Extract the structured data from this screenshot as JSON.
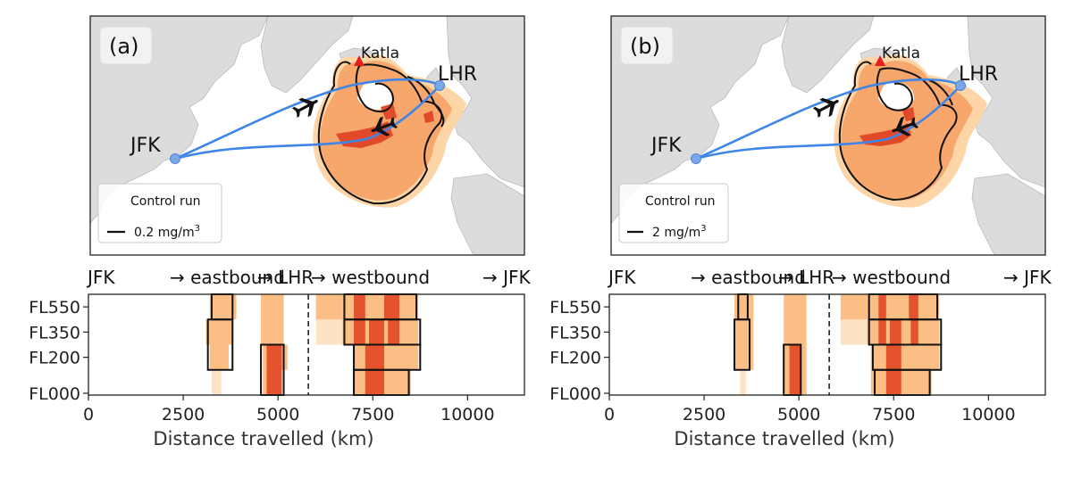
{
  "panels": [
    {
      "letter": "(a)",
      "legend_title": "Control run",
      "legend_value": "0.2 mg/m",
      "legend_sup": "3",
      "airports": {
        "origin": "JFK",
        "destination": "LHR"
      },
      "volcano": "Katla"
    },
    {
      "letter": "(b)",
      "legend_title": "Control run",
      "legend_value": "2 mg/m",
      "legend_sup": "3",
      "airports": {
        "origin": "JFK",
        "destination": "LHR"
      },
      "volcano": "Katla"
    }
  ],
  "colors": {
    "route": "#3e86e8",
    "ash_low": "#fde3c4",
    "ash_mid": "#fbbf86",
    "ash_high": "#e4532e",
    "contour": "#111111",
    "volcano": "#e8201c"
  },
  "chart_data": [
    {
      "type": "heatmap",
      "panel": "(a)",
      "title": "",
      "route_labels": [
        "JFK",
        "→ eastbound",
        "→ LHR",
        "→ westbound",
        "→ JFK"
      ],
      "xlabel": "Distance travelled (km)",
      "ylabel": "",
      "xlim": [
        0,
        11500
      ],
      "x_ticks": [
        0,
        2500,
        5000,
        7500,
        10000
      ],
      "y_levels": [
        "FL000",
        "FL200",
        "FL350",
        "FL550"
      ],
      "lhr_marker_km": 5800,
      "cells": [
        {
          "x0": 3200,
          "x1": 3900,
          "levels": [
            "FL550"
          ],
          "v": 1
        },
        {
          "x0": 3100,
          "x1": 3800,
          "levels": [
            "FL350"
          ],
          "v": 1
        },
        {
          "x0": 3200,
          "x1": 3700,
          "levels": [
            "FL200"
          ],
          "v": 1
        },
        {
          "x0": 3250,
          "x1": 3500,
          "levels": [
            "FL000"
          ],
          "v": 0
        },
        {
          "x0": 4550,
          "x1": 5150,
          "levels": [
            "FL550",
            "FL350"
          ],
          "v": 1
        },
        {
          "x0": 4600,
          "x1": 5250,
          "levels": [
            "FL200"
          ],
          "v": 1
        },
        {
          "x0": 4600,
          "x1": 5000,
          "levels": [
            "FL000"
          ],
          "v": 1
        },
        {
          "x0": 4700,
          "x1": 5100,
          "levels": [
            "FL200",
            "FL000"
          ],
          "v": 2
        },
        {
          "x0": 6000,
          "x1": 6700,
          "levels": [
            "FL550"
          ],
          "v": 1
        },
        {
          "x0": 6000,
          "x1": 6700,
          "levels": [
            "FL350"
          ],
          "v": 0
        },
        {
          "x0": 6700,
          "x1": 8700,
          "levels": [
            "FL550",
            "FL350"
          ],
          "v": 1
        },
        {
          "x0": 7000,
          "x1": 8700,
          "levels": [
            "FL200"
          ],
          "v": 1
        },
        {
          "x0": 7000,
          "x1": 8500,
          "levels": [
            "FL000"
          ],
          "v": 1
        },
        {
          "x0": 7000,
          "x1": 7300,
          "levels": [
            "FL550",
            "FL350"
          ],
          "v": 2
        },
        {
          "x0": 7800,
          "x1": 8200,
          "levels": [
            "FL550"
          ],
          "v": 2
        },
        {
          "x0": 7400,
          "x1": 7800,
          "levels": [
            "FL350"
          ],
          "v": 2
        },
        {
          "x0": 7900,
          "x1": 8200,
          "levels": [
            "FL350"
          ],
          "v": 2
        },
        {
          "x0": 7300,
          "x1": 7800,
          "levels": [
            "FL200",
            "FL000"
          ],
          "v": 2
        }
      ],
      "outlines": [
        {
          "x0": 3250,
          "x1": 3800,
          "levels": [
            "FL550"
          ]
        },
        {
          "x0": 3150,
          "x1": 3800,
          "levels": [
            "FL350",
            "FL200"
          ]
        },
        {
          "x0": 4550,
          "x1": 5150,
          "levels": [
            "FL200",
            "FL000"
          ]
        },
        {
          "x0": 6750,
          "x1": 8650,
          "levels": [
            "FL550"
          ]
        },
        {
          "x0": 6750,
          "x1": 8750,
          "levels": [
            "FL350"
          ]
        },
        {
          "x0": 7000,
          "x1": 8750,
          "levels": [
            "FL200"
          ]
        },
        {
          "x0": 7000,
          "x1": 8450,
          "levels": [
            "FL000"
          ]
        }
      ]
    },
    {
      "type": "heatmap",
      "panel": "(b)",
      "title": "",
      "route_labels": [
        "JFK",
        "→ eastbound",
        "→ LHR",
        "→ westbound",
        "→ JFK"
      ],
      "xlabel": "Distance travelled (km)",
      "ylabel": "",
      "xlim": [
        0,
        11500
      ],
      "x_ticks": [
        0,
        2500,
        5000,
        7500,
        10000
      ],
      "y_levels": [
        "FL000",
        "FL200",
        "FL350",
        "FL550"
      ],
      "lhr_marker_km": 5800,
      "cells": [
        {
          "x0": 3300,
          "x1": 3800,
          "levels": [
            "FL550",
            "FL350"
          ],
          "v": 1
        },
        {
          "x0": 3300,
          "x1": 3800,
          "levels": [
            "FL200"
          ],
          "v": 1
        },
        {
          "x0": 3450,
          "x1": 3600,
          "levels": [
            "FL000"
          ],
          "v": 0
        },
        {
          "x0": 4600,
          "x1": 5200,
          "levels": [
            "FL550",
            "FL350"
          ],
          "v": 1
        },
        {
          "x0": 4600,
          "x1": 5200,
          "levels": [
            "FL200",
            "FL000"
          ],
          "v": 1
        },
        {
          "x0": 4750,
          "x1": 5050,
          "levels": [
            "FL200",
            "FL000"
          ],
          "v": 2
        },
        {
          "x0": 6100,
          "x1": 6800,
          "levels": [
            "FL550"
          ],
          "v": 1
        },
        {
          "x0": 6100,
          "x1": 6800,
          "levels": [
            "FL350"
          ],
          "v": 0
        },
        {
          "x0": 6800,
          "x1": 8700,
          "levels": [
            "FL550",
            "FL350"
          ],
          "v": 1
        },
        {
          "x0": 6900,
          "x1": 8700,
          "levels": [
            "FL200"
          ],
          "v": 1
        },
        {
          "x0": 6900,
          "x1": 8500,
          "levels": [
            "FL000"
          ],
          "v": 1
        },
        {
          "x0": 7100,
          "x1": 7300,
          "levels": [
            "FL550",
            "FL350"
          ],
          "v": 2
        },
        {
          "x0": 7900,
          "x1": 8150,
          "levels": [
            "FL550"
          ],
          "v": 2
        },
        {
          "x0": 7400,
          "x1": 7700,
          "levels": [
            "FL350"
          ],
          "v": 2
        },
        {
          "x0": 7950,
          "x1": 8150,
          "levels": [
            "FL350"
          ],
          "v": 2
        },
        {
          "x0": 7300,
          "x1": 7700,
          "levels": [
            "FL200",
            "FL000"
          ],
          "v": 2
        }
      ],
      "outlines": [
        {
          "x0": 3400,
          "x1": 3650,
          "levels": [
            "FL550"
          ]
        },
        {
          "x0": 3300,
          "x1": 3700,
          "levels": [
            "FL350",
            "FL200"
          ]
        },
        {
          "x0": 4600,
          "x1": 5050,
          "levels": [
            "FL200",
            "FL000"
          ]
        },
        {
          "x0": 6850,
          "x1": 8650,
          "levels": [
            "FL550"
          ]
        },
        {
          "x0": 6850,
          "x1": 8750,
          "levels": [
            "FL350"
          ]
        },
        {
          "x0": 6950,
          "x1": 8750,
          "levels": [
            "FL200"
          ]
        },
        {
          "x0": 7000,
          "x1": 8450,
          "levels": [
            "FL000"
          ]
        }
      ]
    }
  ]
}
